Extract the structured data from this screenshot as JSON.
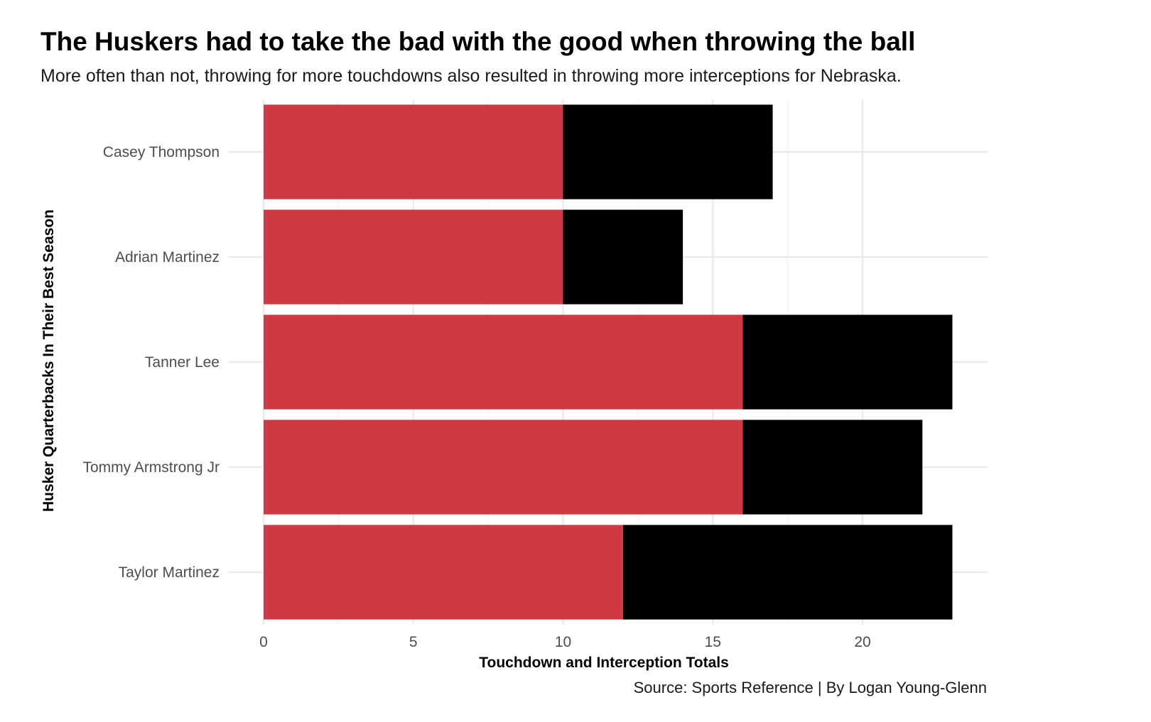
{
  "title": "The Huskers had to take the bad with the good when throwing the ball",
  "subtitle": "More often than not, throwing for more touchdowns also resulted in throwing more interceptions for Nebraska.",
  "caption": "Source: Sports Reference | By Logan Young-Glenn",
  "colors": {
    "touchdowns": "#d13942",
    "interceptions": "#000000",
    "grid": "#ebebeb",
    "tick_text": "#4d4d4d"
  },
  "chart_data": {
    "type": "bar",
    "orientation": "horizontal",
    "stacked": true,
    "title": "The Huskers had to take the bad with the good when throwing the ball",
    "subtitle": "More often than not, throwing for more touchdowns also resulted in throwing more interceptions for Nebraska.",
    "xlabel": "Touchdown and Interception Totals",
    "ylabel": "Husker Quarterbacks In Their Best Season",
    "categories": [
      "Casey Thompson",
      "Adrian Martinez",
      "Tanner Lee",
      "Tommy Armstrong Jr",
      "Taylor Martinez"
    ],
    "series": [
      {
        "values": [
          10,
          10,
          16,
          16,
          12
        ],
        "color": "#d13942"
      },
      {
        "values": [
          7,
          4,
          7,
          6,
          11
        ],
        "color": "#000000"
      }
    ],
    "xlim": [
      0,
      24
    ],
    "xticks": [
      0,
      5,
      10,
      15,
      20
    ],
    "grid": true,
    "legend": "none"
  }
}
